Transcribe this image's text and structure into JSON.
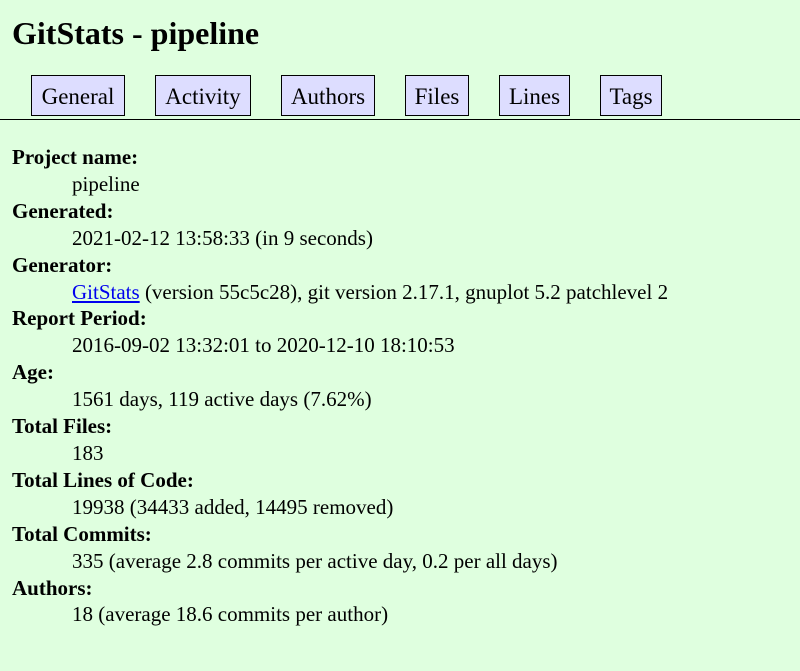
{
  "page": {
    "title": "GitStats - pipeline"
  },
  "nav": {
    "tabs": [
      {
        "label": "General"
      },
      {
        "label": "Activity"
      },
      {
        "label": "Authors"
      },
      {
        "label": "Files"
      },
      {
        "label": "Lines"
      },
      {
        "label": "Tags"
      }
    ]
  },
  "colors": {
    "background": "#dfffdf",
    "tab_background": "#ddddff",
    "link": "#0000ee"
  },
  "general": {
    "project_name": {
      "label": "Project name:",
      "value": "pipeline"
    },
    "generated": {
      "label": "Generated:",
      "value": "2021-02-12 13:58:33 (in 9 seconds)"
    },
    "generator": {
      "label": "Generator:",
      "link_text": "GitStats",
      "value_rest": " (version 55c5c28), git version 2.17.1, gnuplot 5.2 patchlevel 2"
    },
    "report_period": {
      "label": "Report Period:",
      "value": "2016-09-02 13:32:01 to 2020-12-10 18:10:53"
    },
    "age": {
      "label": "Age:",
      "value": "1561 days, 119 active days (7.62%)"
    },
    "total_files": {
      "label": "Total Files:",
      "value": "183"
    },
    "total_lines": {
      "label": "Total Lines of Code:",
      "value": "19938 (34433 added, 14495 removed)"
    },
    "total_commits": {
      "label": "Total Commits:",
      "value": "335 (average 2.8 commits per active day, 0.2 per all days)"
    },
    "authors": {
      "label": "Authors:",
      "value": "18 (average 18.6 commits per author)"
    }
  }
}
